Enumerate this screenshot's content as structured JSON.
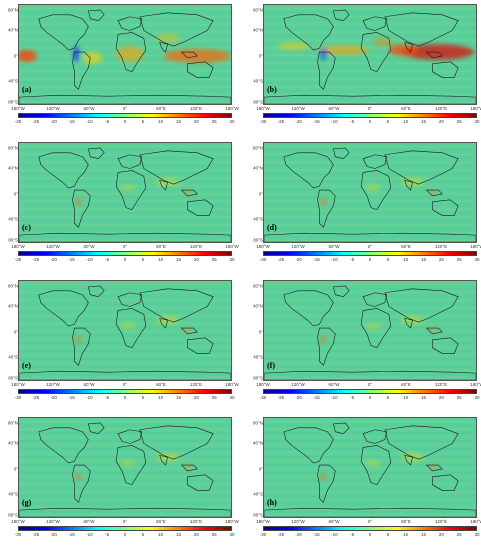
{
  "panels": [
    {
      "label": "(a)"
    },
    {
      "label": "(b)"
    },
    {
      "label": "(c)"
    },
    {
      "label": "(d)"
    },
    {
      "label": "(e)"
    },
    {
      "label": "(f)"
    },
    {
      "label": "(g)"
    },
    {
      "label": "(h)"
    }
  ],
  "lat_labels": [
    "80°N",
    "40°N",
    "0°",
    "40°S",
    "80°S"
  ],
  "lon_labels": [
    "180°W",
    "120°W",
    "60°W",
    "0°",
    "60°E",
    "120°E",
    "180°W"
  ],
  "colorbar": {
    "ticks": [
      "-30",
      "-25",
      "-20",
      "-15",
      "-10",
      "-5",
      "0",
      "5",
      "10",
      "15",
      "20",
      "25",
      "30"
    ],
    "colors": [
      "#00008f",
      "#0000ff",
      "#0080ff",
      "#00ffff",
      "#80ff80",
      "#ffff00",
      "#ff8000",
      "#ff0000",
      "#800000"
    ]
  }
}
